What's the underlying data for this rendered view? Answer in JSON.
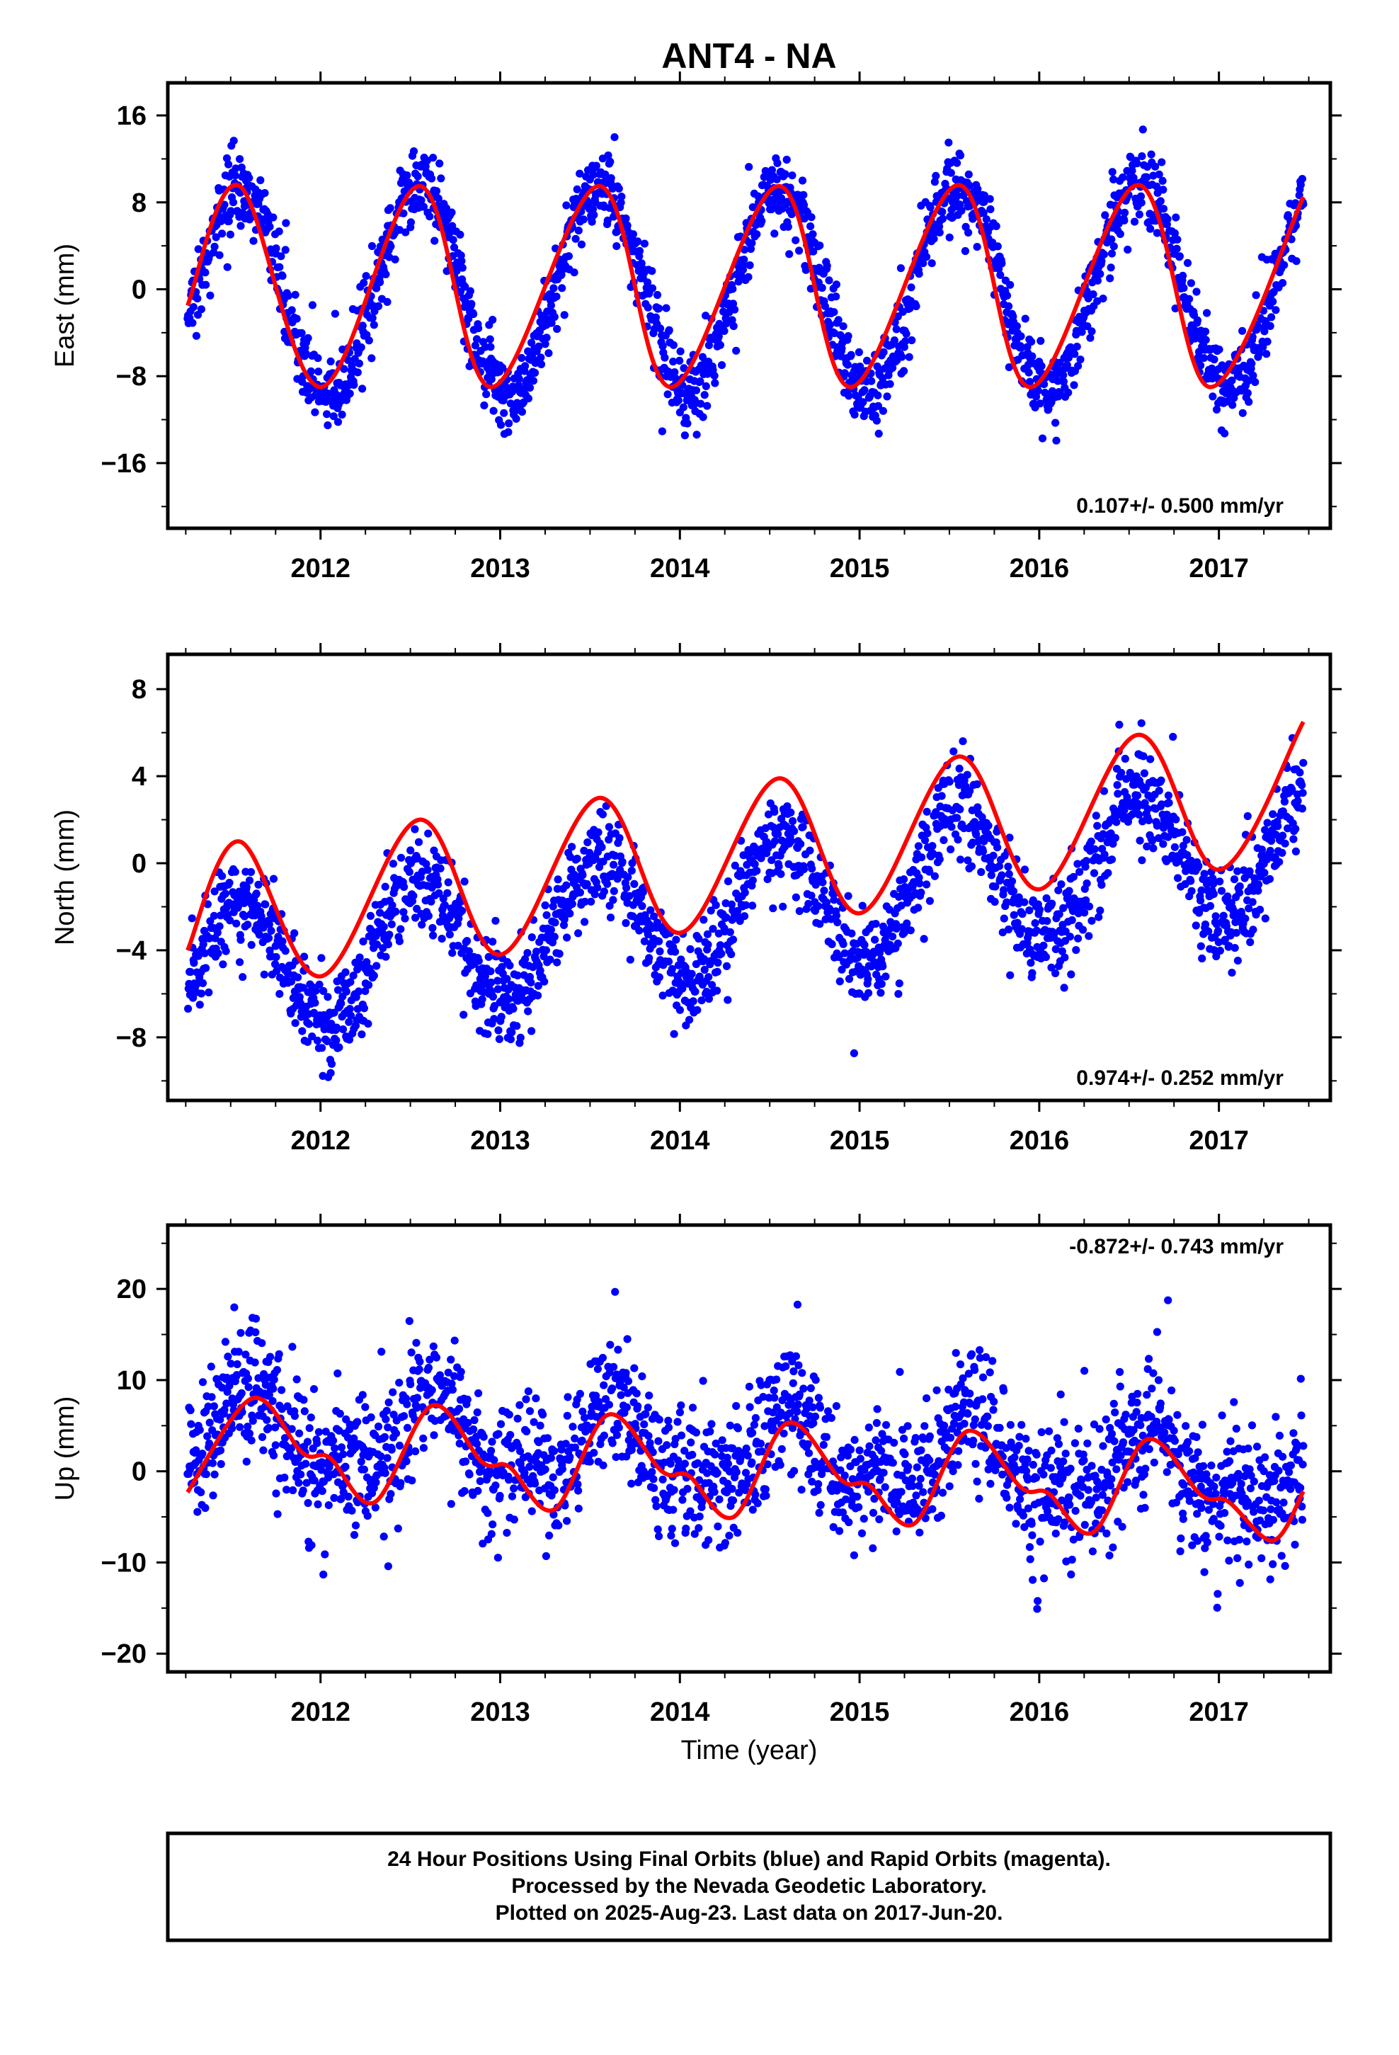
{
  "title": "ANT4 - NA",
  "xlabel": "Time (year)",
  "footer": {
    "line1": "24 Hour Positions Using Final Orbits (blue) and Rapid Orbits (magenta).",
    "line2": "Processed by the Nevada Geodetic Laboratory.",
    "line3": "Plotted on 2025-Aug-23. Last data on 2017-Jun-20."
  },
  "colors": {
    "points": "#0000ff",
    "fit": "#ff0000",
    "frame": "#000000"
  },
  "chart_data": [
    {
      "type": "scatter",
      "ylabel": "East (mm)",
      "rate": "0.107+/- 0.500 mm/yr",
      "xlim": [
        2011.15,
        2017.62
      ],
      "ylim": [
        -22,
        19
      ],
      "yticks": [
        16,
        8,
        0,
        -8,
        -16
      ],
      "yticklabels": [
        "16",
        "8",
        "0",
        "−8",
        "−16"
      ],
      "xticks": [
        2012,
        2013,
        2014,
        2015,
        2016,
        2017
      ],
      "grid": false,
      "series": [
        {
          "kind": "points",
          "x_range": [
            2011.26,
            2017.47
          ],
          "trend_mm_per_yr": 0.107,
          "offset": 0,
          "annual_amplitude": 9.5,
          "annual_peak": 2011.55,
          "semiannual_amplitude": 0,
          "semiannual_peak": 2011.0,
          "noise_sd": 1.8
        },
        {
          "kind": "fit_line",
          "x": [
            2011.26,
            2011.55,
            2012.0,
            2012.55,
            2012.95,
            2013.55,
            2013.95,
            2014.55,
            2014.95,
            2015.55,
            2015.95,
            2016.55,
            2016.95,
            2017.47
          ],
          "y": [
            -1.5,
            9.5,
            -9.0,
            9.5,
            -9.0,
            9.5,
            -9.0,
            9.5,
            -9.0,
            9.6,
            -9.0,
            9.6,
            -9.0,
            8.5
          ]
        }
      ]
    },
    {
      "type": "scatter",
      "ylabel": "North (mm)",
      "rate": "0.974+/- 0.252 mm/yr",
      "xlim": [
        2011.15,
        2017.62
      ],
      "ylim": [
        -10.9,
        9.6
      ],
      "yticks": [
        8,
        4,
        0,
        -4,
        -8
      ],
      "yticklabels": [
        "8",
        "4",
        "0",
        "−4",
        "−8"
      ],
      "xticks": [
        2012,
        2013,
        2014,
        2015,
        2016,
        2017
      ],
      "grid": false,
      "series": [
        {
          "kind": "points",
          "x_range": [
            2011.26,
            2017.47
          ],
          "trend_mm_per_yr": 0.974,
          "offset": -2.1,
          "annual_amplitude": 3.1,
          "annual_peak": 2011.55,
          "semiannual_amplitude": 0,
          "semiannual_peak": 2011.0,
          "noise_sd": 1.1
        },
        {
          "kind": "fit_line",
          "x": [
            2011.26,
            2011.55,
            2012.0,
            2012.55,
            2013.0,
            2013.55,
            2014.0,
            2014.55,
            2015.0,
            2015.55,
            2016.0,
            2016.55,
            2017.0,
            2017.47
          ],
          "y": [
            -4.0,
            1.0,
            -5.2,
            2.0,
            -4.2,
            3.0,
            -3.2,
            3.9,
            -2.3,
            4.9,
            -1.2,
            5.9,
            -0.3,
            6.5
          ]
        }
      ]
    },
    {
      "type": "scatter",
      "ylabel": "Up (mm)",
      "rate": "-0.872+/- 0.743 mm/yr",
      "xlim": [
        2011.15,
        2017.62
      ],
      "ylim": [
        -22,
        27
      ],
      "yticks": [
        20,
        10,
        0,
        -10,
        -20
      ],
      "yticklabels": [
        "20",
        "10",
        "0",
        "−10",
        "−20"
      ],
      "xticks": [
        2012,
        2013,
        2014,
        2015,
        2016,
        2017
      ],
      "grid": false,
      "series": [
        {
          "kind": "points",
          "x_range": [
            2011.26,
            2017.47
          ],
          "trend_mm_per_yr": -0.872,
          "offset": 2.0,
          "annual_amplitude": 3.8,
          "annual_peak": 2011.62,
          "semiannual_amplitude": 1.6,
          "semiannual_peak": 2011.62,
          "noise_sd": 3.6
        },
        {
          "kind": "fit_line",
          "x": [
            2011.26,
            2011.62,
            2011.9,
            2012.05,
            2012.3,
            2012.62,
            2012.9,
            2013.05,
            2013.3,
            2013.6,
            2013.9,
            2014.05,
            2014.3,
            2014.6,
            2014.9,
            2015.05,
            2015.3,
            2015.6,
            2015.9,
            2016.05,
            2016.3,
            2016.6,
            2016.9,
            2017.05,
            2017.3,
            2017.47
          ],
          "y": [
            -2.3,
            8.0,
            2.0,
            1.5,
            -3.4,
            7.2,
            1.0,
            0.5,
            -4.2,
            6.2,
            0.0,
            -0.5,
            -5.0,
            5.3,
            -1.0,
            -1.5,
            -5.8,
            4.4,
            -1.8,
            -2.4,
            -6.7,
            3.5,
            -2.6,
            -3.3,
            -7.6,
            -2.2
          ]
        }
      ]
    }
  ]
}
